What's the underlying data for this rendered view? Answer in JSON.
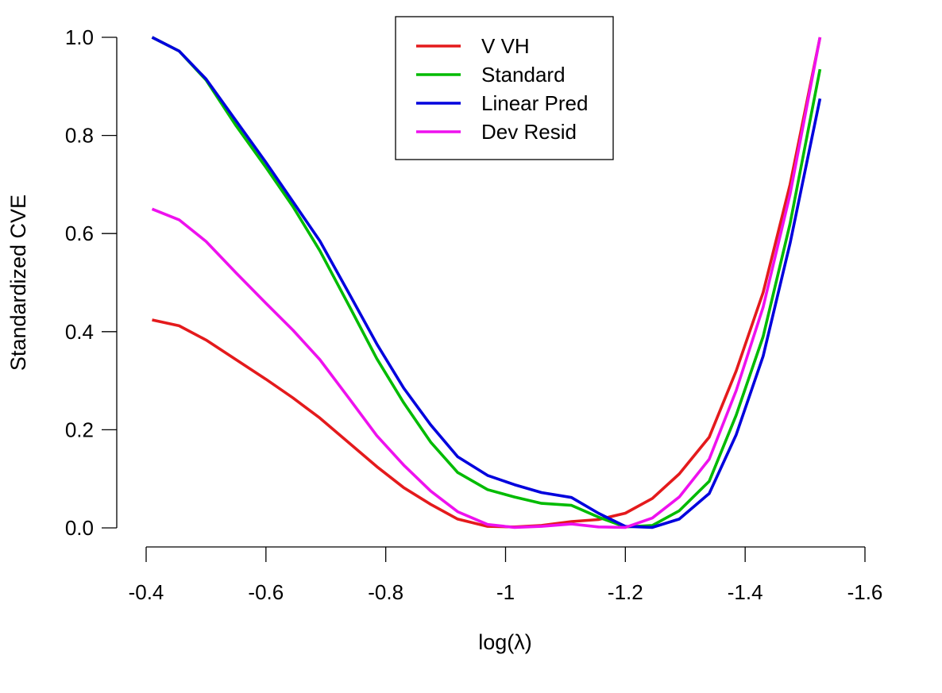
{
  "chart_data": {
    "type": "line",
    "title": "",
    "xlabel": "log(λ)",
    "ylabel": "Standardized CVE",
    "xlim": [
      -0.41,
      -1.53
    ],
    "ylim": [
      0,
      1
    ],
    "x_reversed": true,
    "grid": false,
    "legend_position": "top-center",
    "xticks": [
      -0.4,
      -0.6,
      -0.8,
      -1.0,
      -1.2,
      -1.4,
      -1.6
    ],
    "xtick_labels": [
      "-0.4",
      "-0.6",
      "-0.8",
      "-1",
      "-1.2",
      "-1.4",
      "-1.6"
    ],
    "yticks": [
      0.0,
      0.2,
      0.4,
      0.6,
      0.8,
      1.0
    ],
    "ytick_labels": [
      "0.0",
      "0.2",
      "0.4",
      "0.6",
      "0.8",
      "1.0"
    ],
    "x": [
      -0.41,
      -0.455,
      -0.5,
      -0.55,
      -0.6,
      -0.645,
      -0.69,
      -0.74,
      -0.785,
      -0.83,
      -0.875,
      -0.92,
      -0.97,
      -1.015,
      -1.06,
      -1.11,
      -1.155,
      -1.2,
      -1.245,
      -1.29,
      -1.34,
      -1.385,
      -1.43,
      -1.475,
      -1.525
    ],
    "series": [
      {
        "name": "V VH",
        "color": "#e41a1c",
        "values": [
          0.424,
          0.412,
          0.383,
          0.343,
          0.303,
          0.265,
          0.224,
          0.172,
          0.125,
          0.082,
          0.048,
          0.018,
          0.003,
          0.002,
          0.005,
          0.013,
          0.017,
          0.03,
          0.06,
          0.11,
          0.185,
          0.32,
          0.48,
          0.7,
          1.0
        ]
      },
      {
        "name": "Standard",
        "color": "#00bb00",
        "values": [
          1.0,
          0.972,
          0.913,
          0.82,
          0.735,
          0.655,
          0.565,
          0.45,
          0.345,
          0.255,
          0.175,
          0.113,
          0.078,
          0.063,
          0.05,
          0.046,
          0.022,
          0.002,
          0.005,
          0.035,
          0.095,
          0.23,
          0.39,
          0.62,
          0.935
        ]
      },
      {
        "name": "Linear Pred",
        "color": "#0000dd",
        "values": [
          1.0,
          0.972,
          0.915,
          0.83,
          0.745,
          0.665,
          0.585,
          0.475,
          0.375,
          0.285,
          0.21,
          0.145,
          0.107,
          0.088,
          0.072,
          0.062,
          0.03,
          0.003,
          0.001,
          0.018,
          0.07,
          0.19,
          0.35,
          0.58,
          0.875
        ]
      },
      {
        "name": "Dev Resid",
        "color": "#ee11ee",
        "values": [
          0.65,
          0.628,
          0.584,
          0.52,
          0.458,
          0.403,
          0.343,
          0.262,
          0.188,
          0.128,
          0.075,
          0.033,
          0.007,
          0.001,
          0.003,
          0.008,
          0.002,
          0.001,
          0.02,
          0.063,
          0.14,
          0.28,
          0.45,
          0.68,
          1.0
        ]
      }
    ]
  }
}
